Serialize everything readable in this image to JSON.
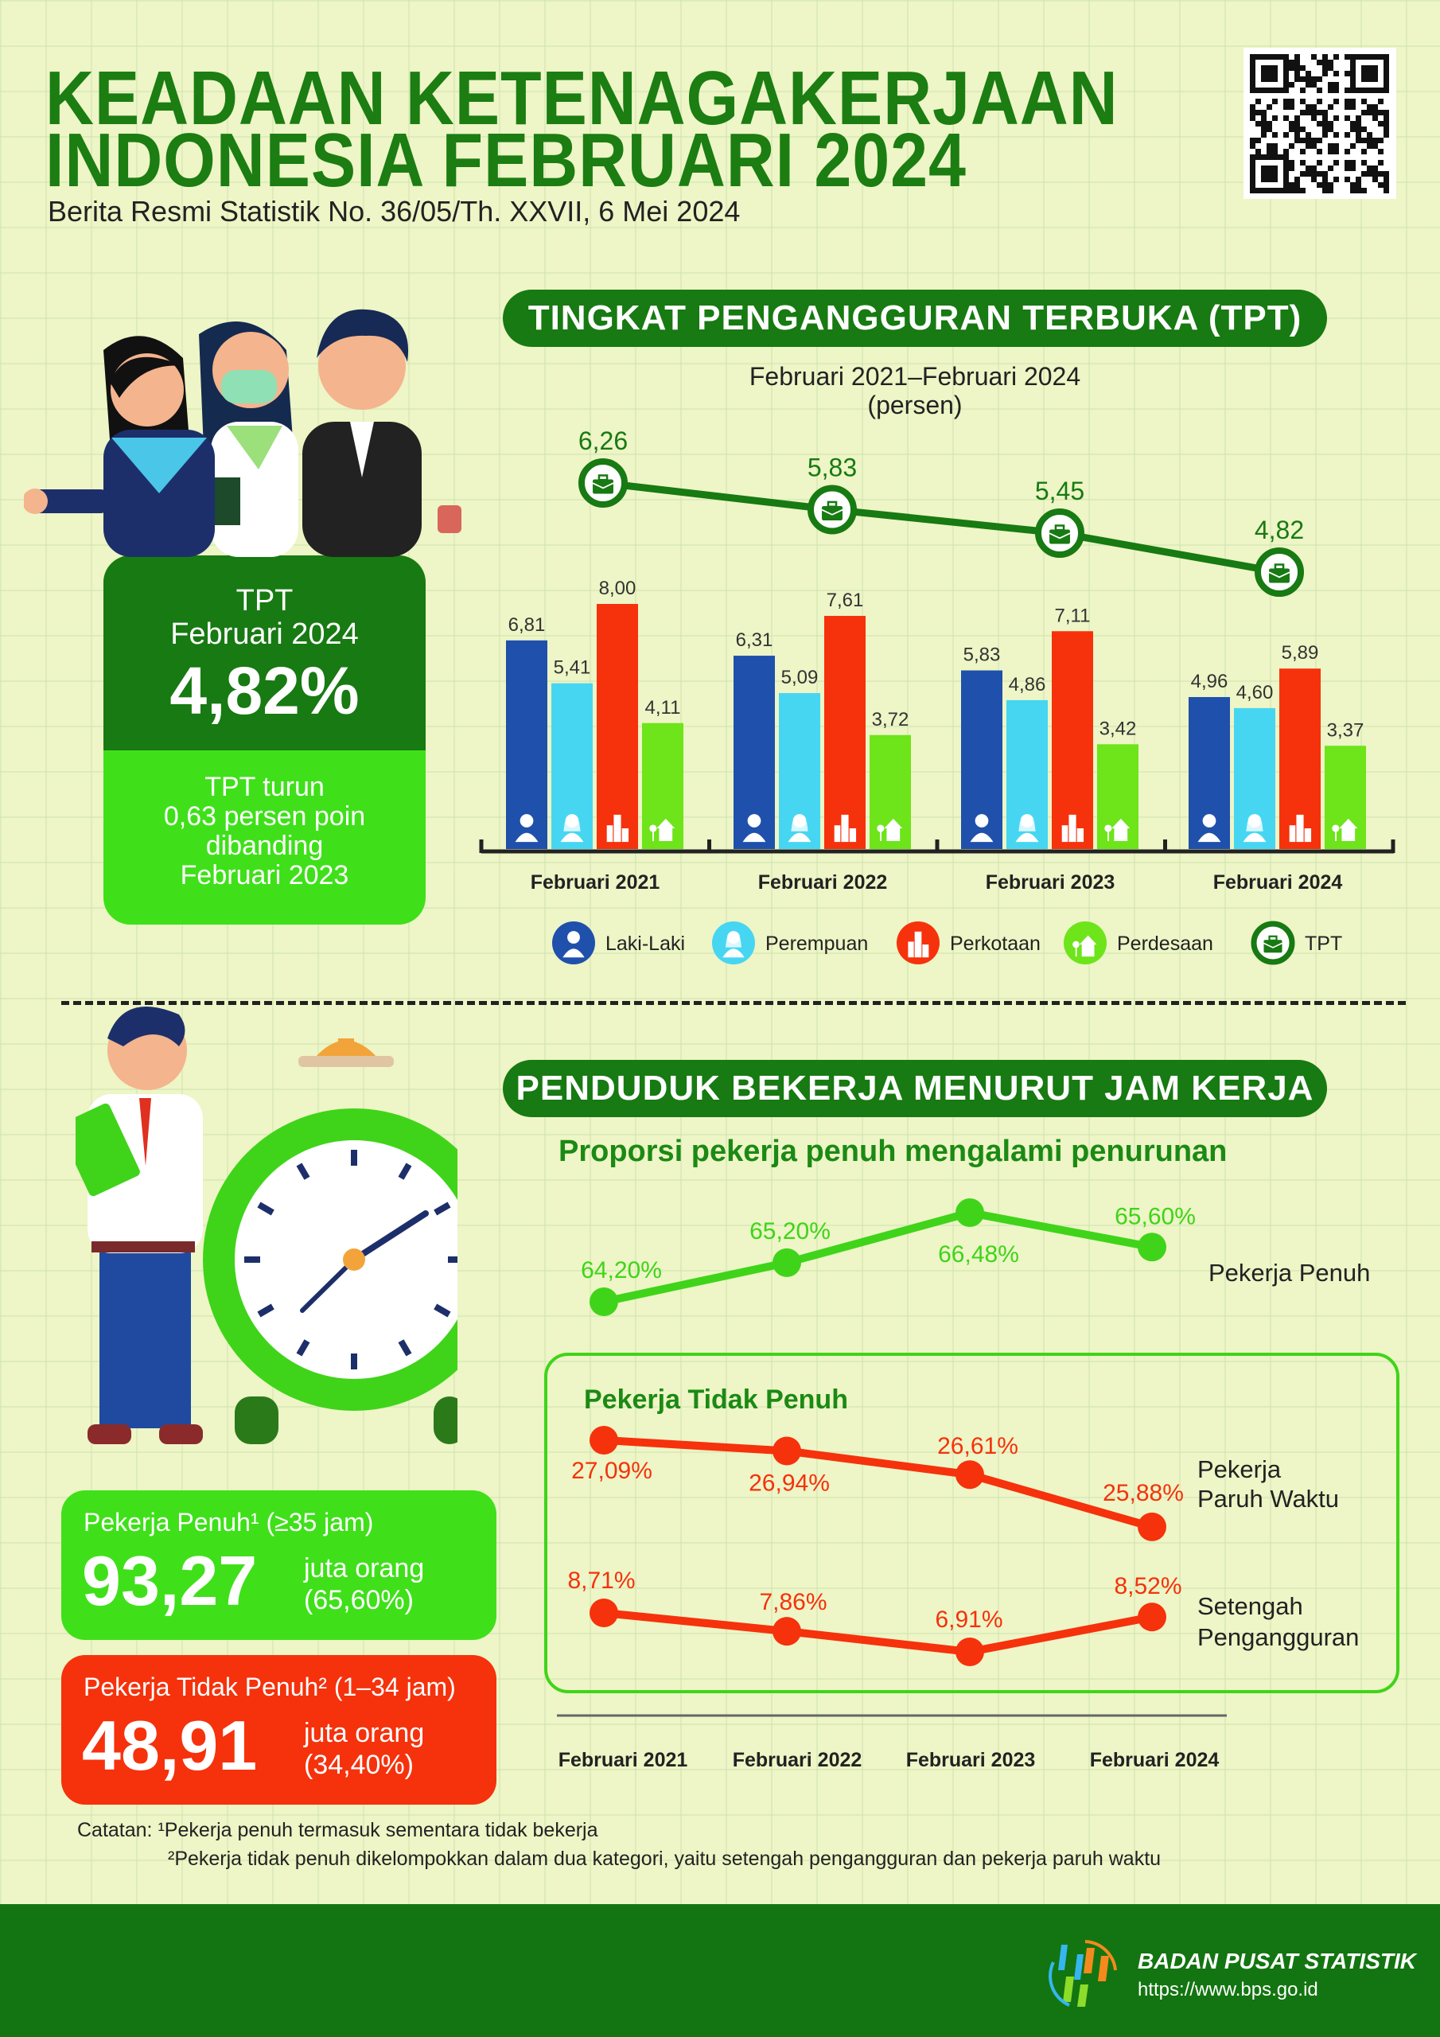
{
  "header": {
    "title_line1": "KEADAAN KETENAGAKERJAAN",
    "title_line2": "INDONESIA FEBRUARI 2024",
    "subtitle": "Berita Resmi Statistik No. 36/05/Th. XXVII, 6 Mei 2024"
  },
  "tpt_section": {
    "pill": "TINGKAT PENGANGGURAN TERBUKA (TPT)",
    "period": "Februari 2021–Februari 2024",
    "unit": "(persen)",
    "legend": [
      {
        "label": "Laki-Laki",
        "icon": "male-person-icon",
        "color": "#1f50ab"
      },
      {
        "label": "Perempuan",
        "icon": "female-person-icon",
        "color": "#46d6f2"
      },
      {
        "label": "Perkotaan",
        "icon": "city-building-icon",
        "color": "#f5320c"
      },
      {
        "label": "Perdesaan",
        "icon": "village-house-icon",
        "color": "#6ee41a"
      },
      {
        "label": "TPT",
        "icon": "briefcase-icon",
        "color": "#177a12"
      }
    ]
  },
  "tpt_box": {
    "label": "TPT",
    "period": "Februari 2024",
    "value": "4,82%",
    "note_lines": [
      "TPT turun",
      "0,63 persen poin",
      "dibanding",
      "Februari 2023"
    ]
  },
  "jam_section": {
    "pill": "PENDUDUK BEKERJA MENURUT JAM KERJA",
    "headline": "Proporsi pekerja penuh mengalami penurunan",
    "box_title": "Pekerja Tidak Penuh"
  },
  "stats": {
    "penuh": {
      "label": "Pekerja Penuh¹ (≥35  jam)",
      "value": "93,27",
      "unit": "juta orang",
      "pct": "(65,60%)"
    },
    "tidak_penuh": {
      "label": "Pekerja Tidak Penuh² (1–34 jam)",
      "value": "48,91",
      "unit": "juta orang",
      "pct": "(34,40%)"
    }
  },
  "notes": {
    "line1": "Catatan: ¹Pekerja penuh termasuk sementara tidak bekerja",
    "line2": "²Pekerja tidak penuh dikelompokkan dalam dua kategori, yaitu setengah pengangguran dan pekerja paruh waktu"
  },
  "footer": {
    "org": "BADAN PUSAT STATISTIK",
    "url": "https://www.bps.go.id"
  },
  "colors": {
    "dark_green": "#177a12",
    "bright_green": "#3fe01a",
    "red": "#f5320c",
    "background": "#eef5c6"
  },
  "chart_data": [
    {
      "type": "bar",
      "title": "TINGKAT PENGANGGURAN TERBUKA (TPT)",
      "subtitle": "Februari 2021–Februari 2024",
      "ylabel": "(persen)",
      "categories": [
        "Februari 2021",
        "Februari 2022",
        "Februari 2023",
        "Februari 2024"
      ],
      "series": [
        {
          "name": "Laki-Laki",
          "color": "#1f50ab",
          "values": [
            "6,81",
            "6,31",
            "5,83",
            "4,96"
          ],
          "numeric": [
            6.81,
            6.31,
            5.83,
            4.96
          ]
        },
        {
          "name": "Perempuan",
          "color": "#46d6f2",
          "values": [
            "5,41",
            "5,09",
            "4,86",
            "4,60"
          ],
          "numeric": [
            5.41,
            5.09,
            4.86,
            4.6
          ]
        },
        {
          "name": "Perkotaan",
          "color": "#f5320c",
          "values": [
            "8,00",
            "7,61",
            "7,11",
            "5,89"
          ],
          "numeric": [
            8.0,
            7.61,
            7.11,
            5.89
          ]
        },
        {
          "name": "Perdesaan",
          "color": "#6ee41a",
          "values": [
            "4,11",
            "3,72",
            "3,42",
            "3,37"
          ],
          "numeric": [
            4.11,
            3.72,
            3.42,
            3.37
          ]
        }
      ],
      "line_series": {
        "name": "TPT",
        "color": "#177a12",
        "values": [
          "6,26",
          "5,83",
          "5,45",
          "4,82"
        ],
        "numeric": [
          6.26,
          5.83,
          5.45,
          4.82
        ]
      },
      "legend": "bottom",
      "grid": false
    },
    {
      "type": "line",
      "title": "Proporsi pekerja penuh mengalami penurunan",
      "categories": [
        "Februari 2021",
        "Februari 2022",
        "Februari 2023",
        "Februari 2024"
      ],
      "series": [
        {
          "name": "Pekerja Penuh",
          "color": "#3fd41a",
          "values": [
            "64,20%",
            "65,20%",
            "66,48%",
            "65,60%"
          ],
          "numeric": [
            64.2,
            65.2,
            66.48,
            65.6
          ]
        },
        {
          "name": "Pekerja Paruh Waktu",
          "name_lines": [
            "Pekerja",
            "Paruh Waktu"
          ],
          "color": "#f5320c",
          "values": [
            "27,09%",
            "26,94%",
            "26,61%",
            "25,88%"
          ],
          "numeric": [
            27.09,
            26.94,
            26.61,
            25.88
          ]
        },
        {
          "name": "Setengah Pengangguran",
          "name_lines": [
            "Setengah",
            "Pengangguran"
          ],
          "color": "#f5320c",
          "values": [
            "8,71%",
            "7,86%",
            "6,91%",
            "8,52%"
          ],
          "numeric": [
            8.71,
            7.86,
            6.91,
            8.52
          ]
        }
      ],
      "group_title": "Pekerja Tidak Penuh",
      "grid": false
    }
  ]
}
